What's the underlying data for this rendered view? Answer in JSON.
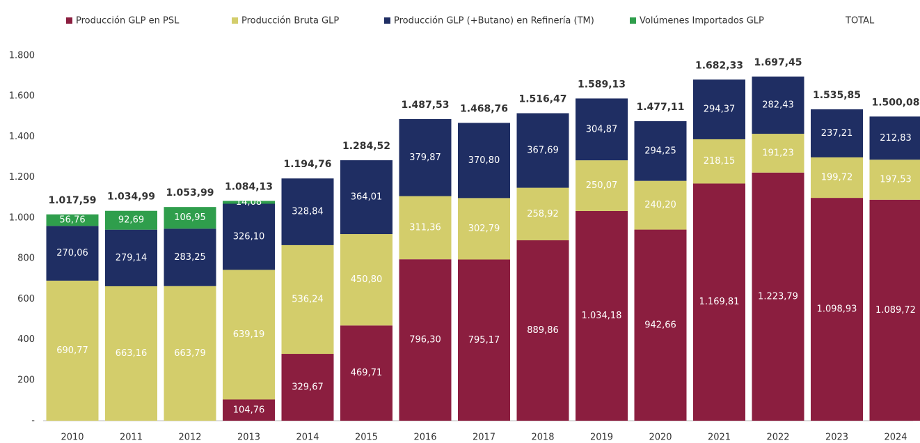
{
  "chart_data": {
    "type": "stacked_bar",
    "categories": [
      "2010",
      "2011",
      "2012",
      "2013",
      "2014",
      "2015",
      "2016",
      "2017",
      "2018",
      "2019",
      "2020",
      "2021",
      "2022",
      "2023",
      "2024"
    ],
    "series": [
      {
        "name": "Producción GLP en PSL",
        "color": "#8b1e3f",
        "values": [
          null,
          null,
          null,
          104.76,
          329.67,
          469.71,
          796.3,
          795.17,
          889.86,
          1034.18,
          942.66,
          1169.81,
          1223.79,
          1098.93,
          1089.72
        ],
        "value_labels": [
          null,
          null,
          null,
          "104,76",
          "329,67",
          "469,71",
          "796,30",
          "795,17",
          "889,86",
          "1.034,18",
          "942,66",
          "1.169,81",
          "1.223,79",
          "1.098,93",
          "1.089,72"
        ]
      },
      {
        "name": "Producción Bruta GLP",
        "color": "#d3cd6b",
        "values": [
          690.77,
          663.16,
          663.79,
          639.19,
          536.24,
          450.8,
          311.36,
          302.79,
          258.92,
          250.07,
          240.2,
          218.15,
          191.23,
          199.72,
          197.53
        ],
        "value_labels": [
          "690,77",
          "663,16",
          "663,79",
          "639,19",
          "536,24",
          "450,80",
          "311,36",
          "302,79",
          "258,92",
          "250,07",
          "240,20",
          "218,15",
          "191,23",
          "199,72",
          "197,53"
        ]
      },
      {
        "name": "Producción GLP (+Butano) en Refinería (TM)",
        "color": "#1f2e63",
        "values": [
          270.06,
          279.14,
          283.25,
          326.1,
          328.84,
          364.01,
          379.87,
          370.8,
          367.69,
          304.87,
          294.25,
          294.37,
          282.43,
          237.21,
          212.83
        ],
        "value_labels": [
          "270,06",
          "279,14",
          "283,25",
          "326,10",
          "328,84",
          "364,01",
          "379,87",
          "370,80",
          "367,69",
          "304,87",
          "294,25",
          "294,37",
          "282,43",
          "237,21",
          "212,83"
        ]
      },
      {
        "name": "Volúmenes Importados GLP",
        "color": "#2f9e4c",
        "values": [
          56.76,
          92.69,
          106.95,
          14.08,
          null,
          null,
          null,
          null,
          null,
          null,
          null,
          null,
          null,
          null,
          null
        ],
        "value_labels": [
          "56,76",
          "92,69",
          "106,95",
          "14,08",
          null,
          null,
          null,
          null,
          null,
          null,
          null,
          null,
          null,
          null,
          null
        ]
      }
    ],
    "totals": {
      "name": "TOTAL",
      "color": "#2b3a6b",
      "values": [
        1017.59,
        1034.99,
        1053.99,
        1084.13,
        1194.76,
        1284.52,
        1487.53,
        1468.76,
        1516.47,
        1589.13,
        1477.11,
        1682.33,
        1697.45,
        1535.85,
        1500.08
      ],
      "value_labels": [
        "1.017,59",
        "1.034,99",
        "1.053,99",
        "1.084,13",
        "1.194,76",
        "1.284,52",
        "1.487,53",
        "1.468,76",
        "1.516,47",
        "1.589,13",
        "1.477,11",
        "1.682,33",
        "1.697,45",
        "1.535,85",
        "1.500,08"
      ]
    },
    "ylim": [
      0,
      1800
    ],
    "yticks": [
      {
        "value": 0,
        "label": "-"
      },
      200,
      400,
      600,
      800,
      {
        "value": 1000,
        "label": "1.000"
      },
      {
        "value": 1200,
        "label": "1.200"
      },
      {
        "value": 1400,
        "label": "1.400"
      },
      {
        "value": 1600,
        "label": "1.600"
      },
      {
        "value": 1800,
        "label": "1.800"
      }
    ],
    "legend": "top"
  }
}
